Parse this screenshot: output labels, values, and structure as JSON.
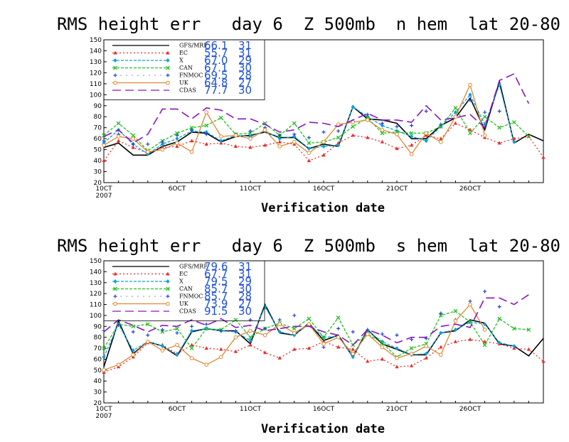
{
  "colors": {
    "GFS/MRF": "#000000",
    "EC": "#ee2a2a",
    "X": "#0aa0dc",
    "CAN": "#22c020",
    "FNMOC": "#2040d0",
    "UK": "#dd8833",
    "CDAS": "#8a16c0",
    "legend_values": "#1e50dc"
  },
  "chart_data": [
    {
      "type": "line",
      "title": "RMS height err   day 6  Z 500mb  n hem  lat 20-80",
      "xlabel": "Verification date",
      "ylabel": "",
      "ylim": [
        20,
        150
      ],
      "yticks": [
        20,
        30,
        40,
        50,
        60,
        70,
        80,
        90,
        100,
        110,
        120,
        130,
        140,
        150
      ],
      "xlim": [
        1,
        31
      ],
      "xticks": [
        1,
        6,
        11,
        16,
        21,
        26
      ],
      "xtick_labels": [
        "10CT",
        "6OCT",
        "11OCT",
        "16OCT",
        "21OCT",
        "26OCT"
      ],
      "x_year_label": "2007",
      "legend_position": "top-left",
      "series": [
        {
          "name": "GFS/MRF",
          "legend_value": "66.1",
          "legend_count": "31",
          "style": "solid",
          "marker": "none",
          "x": [
            1,
            2,
            3,
            4,
            5,
            6,
            7,
            8,
            9,
            10,
            11,
            12,
            13,
            14,
            15,
            16,
            17,
            18,
            19,
            20,
            21,
            22,
            23,
            24,
            25,
            26,
            27,
            28,
            29,
            30,
            31
          ],
          "values": [
            52,
            56,
            45,
            45,
            53,
            57,
            66,
            65,
            57,
            62,
            63,
            66,
            61,
            61,
            51,
            55,
            53,
            89,
            78,
            77,
            74,
            60,
            60,
            72,
            79,
            97,
            68,
            112,
            56,
            64,
            58
          ]
        },
        {
          "name": "EC",
          "legend_value": "55.7",
          "legend_count": "31",
          "style": "dotted",
          "marker": "triangle",
          "x": [
            1,
            2,
            3,
            4,
            5,
            6,
            7,
            8,
            9,
            10,
            11,
            12,
            13,
            14,
            15,
            16,
            17,
            18,
            19,
            20,
            21,
            22,
            23,
            24,
            25,
            26,
            27,
            28,
            29,
            30,
            31
          ],
          "values": [
            40,
            58,
            52,
            47,
            52,
            53,
            58,
            55,
            56,
            53,
            52,
            54,
            57,
            55,
            40,
            45,
            56,
            63,
            61,
            57,
            51,
            54,
            63,
            60,
            74,
            68,
            61,
            56,
            60,
            62,
            43
          ]
        },
        {
          "name": "X",
          "legend_value": "67.0",
          "legend_count": "29",
          "style": "dashed",
          "marker": "diamond",
          "x": [
            1,
            2,
            3,
            4,
            5,
            6,
            7,
            8,
            9,
            10,
            11,
            12,
            13,
            14,
            15,
            16,
            17,
            18,
            19,
            20,
            21,
            22,
            23,
            24,
            25,
            26,
            27,
            28,
            29
          ],
          "values": [
            56,
            68,
            55,
            46,
            55,
            60,
            67,
            66,
            58,
            63,
            62,
            67,
            60,
            62,
            51,
            53,
            54,
            89,
            80,
            72,
            67,
            62,
            58,
            71,
            84,
            100,
            73,
            109,
            57
          ]
        },
        {
          "name": "CAN",
          "legend_value": "67.1",
          "legend_count": "30",
          "style": "dashed",
          "marker": "x",
          "x": [
            1,
            2,
            3,
            4,
            5,
            6,
            7,
            8,
            9,
            10,
            11,
            12,
            13,
            14,
            15,
            16,
            17,
            18,
            19,
            20,
            21,
            22,
            23,
            24,
            25,
            26,
            27,
            28,
            29,
            30
          ],
          "values": [
            63,
            74,
            63,
            49,
            58,
            65,
            70,
            72,
            79,
            64,
            65,
            74,
            63,
            74,
            56,
            57,
            61,
            71,
            79,
            65,
            66,
            65,
            65,
            71,
            88,
            65,
            80,
            70,
            75,
            62
          ]
        },
        {
          "name": "FNMOC",
          "legend_value": "69.5",
          "legend_count": "28",
          "style": "dotted",
          "marker": "plus",
          "x": [
            1,
            2,
            3,
            4,
            5,
            6,
            7,
            8,
            9,
            10,
            11,
            12,
            13,
            14,
            15,
            16,
            17,
            18,
            19,
            20,
            21,
            22,
            23,
            24,
            25,
            26,
            27,
            28
          ],
          "values": [
            58,
            64,
            55,
            55,
            57,
            63,
            68,
            64,
            62,
            64,
            67,
            70,
            63,
            64,
            61,
            66,
            67,
            76,
            82,
            74,
            71,
            72,
            85,
            73,
            80,
            95,
            84,
            85
          ]
        },
        {
          "name": "UK",
          "legend_value": "64.8",
          "legend_count": "27",
          "style": "solid",
          "marker": "circle",
          "x": [
            1,
            2,
            3,
            4,
            5,
            6,
            7,
            8,
            9,
            10,
            11,
            12,
            13,
            14,
            15,
            16,
            17,
            18,
            19,
            20,
            21,
            22,
            23,
            24,
            25,
            26,
            27
          ],
          "values": [
            54,
            62,
            60,
            48,
            50,
            56,
            48,
            84,
            62,
            63,
            60,
            68,
            53,
            57,
            47,
            57,
            73,
            75,
            77,
            68,
            64,
            46,
            65,
            57,
            80,
            109,
            63
          ]
        },
        {
          "name": "CDAS",
          "legend_value": "77.7",
          "legend_count": "30",
          "style": "longdash",
          "marker": "none",
          "x": [
            1,
            2,
            3,
            4,
            5,
            6,
            7,
            8,
            9,
            10,
            11,
            12,
            13,
            14,
            15,
            16,
            17,
            18,
            19,
            20,
            21,
            22,
            23,
            24,
            25,
            26,
            27,
            28,
            29,
            30
          ],
          "values": [
            62,
            68,
            56,
            64,
            87,
            87,
            78,
            88,
            86,
            78,
            78,
            73,
            66,
            68,
            75,
            74,
            71,
            77,
            83,
            77,
            77,
            75,
            90,
            77,
            79,
            82,
            70,
            113,
            119,
            92
          ]
        }
      ]
    },
    {
      "type": "line",
      "title": "RMS height err   day 6  Z 500mb  s hem  lat 20-80",
      "xlabel": "Verification date",
      "ylabel": "",
      "ylim": [
        20,
        150
      ],
      "yticks": [
        20,
        30,
        40,
        50,
        60,
        70,
        80,
        90,
        100,
        110,
        120,
        130,
        140,
        150
      ],
      "xlim": [
        1,
        31
      ],
      "xticks": [
        1,
        6,
        11,
        16,
        21,
        26
      ],
      "xtick_labels": [
        "10CT",
        "6OCT",
        "11OCT",
        "16OCT",
        "21OCT",
        "26OCT"
      ],
      "x_year_label": "2007",
      "legend_position": "top-left",
      "series": [
        {
          "name": "GFS/MRF",
          "legend_value": "79.6",
          "legend_count": "31",
          "style": "solid",
          "marker": "none",
          "x": [
            1,
            2,
            3,
            4,
            5,
            6,
            7,
            8,
            9,
            10,
            11,
            12,
            13,
            14,
            15,
            16,
            17,
            18,
            19,
            20,
            21,
            22,
            23,
            24,
            25,
            26,
            27,
            28,
            29,
            30,
            31
          ],
          "values": [
            53,
            95,
            65,
            76,
            72,
            63,
            85,
            88,
            86,
            86,
            74,
            110,
            84,
            82,
            93,
            77,
            82,
            62,
            87,
            74,
            69,
            64,
            64,
            84,
            86,
            96,
            93,
            74,
            72,
            63,
            79
          ]
        },
        {
          "name": "EC",
          "legend_value": "67.7",
          "legend_count": "31",
          "style": "dotted",
          "marker": "triangle",
          "x": [
            1,
            2,
            3,
            4,
            5,
            6,
            7,
            8,
            9,
            10,
            11,
            12,
            13,
            14,
            15,
            16,
            17,
            18,
            19,
            20,
            21,
            22,
            23,
            24,
            25,
            26,
            27,
            28,
            29,
            30,
            31
          ],
          "values": [
            48,
            53,
            62,
            75,
            73,
            65,
            73,
            70,
            69,
            67,
            73,
            66,
            61,
            69,
            70,
            76,
            71,
            69,
            58,
            60,
            53,
            54,
            61,
            71,
            76,
            78,
            76,
            74,
            70,
            69,
            58
          ]
        },
        {
          "name": "X",
          "legend_value": "79.5",
          "legend_count": "29",
          "style": "dashed",
          "marker": "diamond",
          "x": [
            1,
            2,
            3,
            4,
            5,
            6,
            7,
            8,
            9,
            10,
            11,
            12,
            13,
            14,
            15,
            16,
            17,
            18,
            19,
            20,
            21,
            22,
            23,
            24,
            25,
            26,
            27,
            28,
            29
          ],
          "values": [
            62,
            92,
            68,
            76,
            72,
            64,
            86,
            88,
            86,
            85,
            77,
            108,
            85,
            82,
            92,
            80,
            81,
            62,
            86,
            76,
            70,
            64,
            65,
            84,
            87,
            94,
            92,
            75,
            72
          ]
        },
        {
          "name": "CAN",
          "legend_value": "85.7",
          "legend_count": "30",
          "style": "dashed",
          "marker": "x",
          "x": [
            1,
            2,
            3,
            4,
            5,
            6,
            7,
            8,
            9,
            10,
            11,
            12,
            13,
            14,
            15,
            16,
            17,
            18,
            19,
            20,
            21,
            22,
            23,
            24,
            25,
            26,
            27,
            28,
            29,
            30
          ],
          "values": [
            70,
            92,
            90,
            92,
            85,
            88,
            70,
            88,
            87,
            96,
            80,
            88,
            93,
            88,
            97,
            80,
            98,
            73,
            83,
            75,
            62,
            70,
            74,
            100,
            104,
            94,
            73,
            97,
            88,
            87
          ]
        },
        {
          "name": "FNMOC",
          "legend_value": "85.7",
          "legend_count": "28",
          "style": "dotted",
          "marker": "plus",
          "x": [
            1,
            2,
            3,
            4,
            5,
            6,
            7,
            8,
            9,
            10,
            11,
            12,
            13,
            14,
            15,
            16,
            17,
            18,
            19,
            20,
            21,
            22,
            23,
            24,
            25,
            26,
            27,
            28
          ],
          "values": [
            86,
            91,
            85,
            82,
            87,
            84,
            90,
            92,
            86,
            86,
            96,
            88,
            96,
            100,
            92,
            71,
            88,
            85,
            87,
            83,
            82,
            78,
            79,
            102,
            96,
            113,
            122,
            108
          ]
        },
        {
          "name": "UK",
          "legend_value": "73.9",
          "legend_count": "27",
          "style": "solid",
          "marker": "circle",
          "x": [
            1,
            2,
            3,
            4,
            5,
            6,
            7,
            8,
            9,
            10,
            11,
            12,
            13,
            14,
            15,
            16,
            17,
            18,
            19,
            20,
            21,
            22,
            23,
            24,
            25,
            26,
            27
          ],
          "values": [
            50,
            55,
            64,
            76,
            68,
            73,
            61,
            55,
            62,
            80,
            86,
            82,
            92,
            84,
            92,
            74,
            80,
            65,
            83,
            71,
            61,
            65,
            72,
            64,
            95,
            110,
            87
          ]
        },
        {
          "name": "CDAS",
          "legend_value": "91.5",
          "legend_count": "30",
          "style": "longdash",
          "marker": "none",
          "x": [
            1,
            2,
            3,
            4,
            5,
            6,
            7,
            8,
            9,
            10,
            11,
            12,
            13,
            14,
            15,
            16,
            17,
            18,
            19,
            20,
            21,
            22,
            23,
            24,
            25,
            26,
            27,
            28,
            29,
            30
          ],
          "values": [
            85,
            96,
            91,
            85,
            91,
            90,
            96,
            91,
            97,
            89,
            91,
            86,
            88,
            90,
            90,
            85,
            82,
            73,
            87,
            82,
            75,
            80,
            80,
            90,
            92,
            89,
            116,
            116,
            110,
            119
          ]
        }
      ]
    }
  ]
}
